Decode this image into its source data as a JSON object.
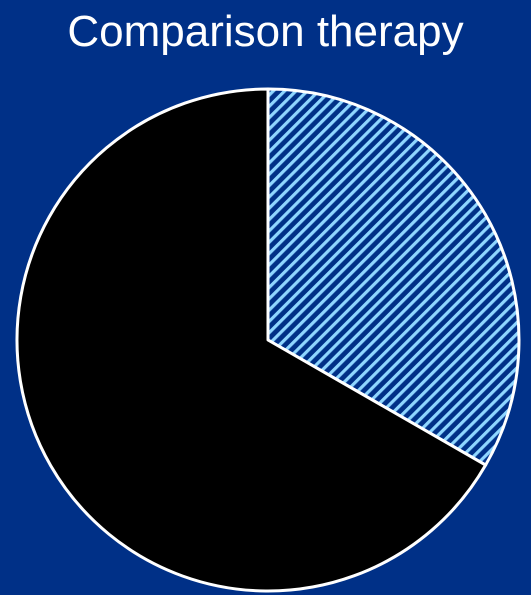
{
  "chart_data": {
    "type": "pie",
    "title": "Comparison therapy",
    "slices": [
      {
        "value": 33.3,
        "fill": "hatched",
        "color": "#8fd6ff"
      },
      {
        "value": 66.7,
        "fill": "solid",
        "color": "#000000"
      }
    ],
    "start_angle_deg": 0,
    "direction": "clockwise",
    "legend": "none",
    "colors": {
      "background": "#003087",
      "slice_border": "#ffffff",
      "hatch_background": "#003087"
    }
  }
}
